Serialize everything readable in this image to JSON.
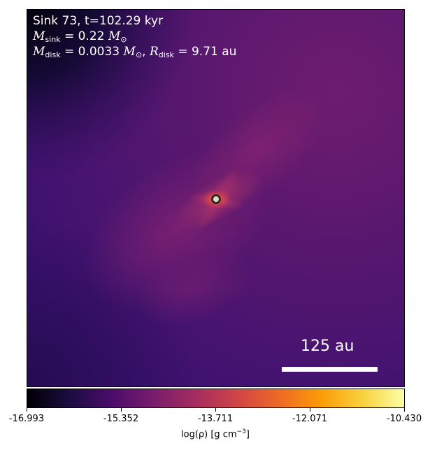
{
  "annotation": {
    "sink_line": "Sink 73, t=102.29 kyr",
    "msink_symbol": "M",
    "msink_sub": "sink",
    "msink_value": " = 0.22 ",
    "msun_symbol": "M",
    "msun_sub": "⊙",
    "mdisk_symbol": "M",
    "mdisk_sub": "disk",
    "mdisk_value": " = 0.0033 ",
    "mdisk_unit_symbol": "M",
    "mdisk_unit_sub": "⊙",
    "sep": ", ",
    "rdisk_symbol": "R",
    "rdisk_sub": "disk",
    "rdisk_value": " = 9.71 au"
  },
  "scale_bar": {
    "label": "125 au"
  },
  "colorbar": {
    "ticks": [
      "-16.993",
      "-15.352",
      "-13.711",
      "-12.071",
      "-10.430"
    ],
    "range": [
      -16.993,
      -10.43
    ],
    "label_prefix": "log(ρ) [g cm",
    "label_exp": "−3",
    "label_suffix": "]",
    "colormap": "inferno",
    "colors": [
      "#000004",
      "#1b0c41",
      "#4a0c6b",
      "#781c6d",
      "#a52c60",
      "#cf4446",
      "#ed6925",
      "#fb9b06",
      "#f7d13d",
      "#fcffa4"
    ]
  },
  "image": {
    "background_color": "#3f1472",
    "upper_right_color": "#6e1d6f",
    "corner_color": "#0a0418",
    "sink_marker_color": "#ffffff",
    "core_color": "#f0662a"
  }
}
